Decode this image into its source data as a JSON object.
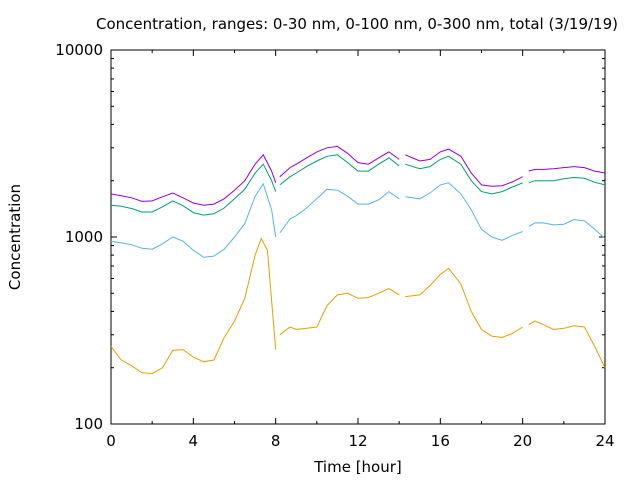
{
  "chart_data": {
    "type": "line",
    "title": "Concentration, ranges: 0-30 nm, 0-100 nm, 0-300 nm, total (3/19/19)",
    "xlabel": "Time [hour]",
    "ylabel": "Concentration",
    "xlim": [
      0,
      24
    ],
    "ylim": [
      100,
      10000
    ],
    "yscale": "log",
    "xticks": [
      0,
      4,
      8,
      12,
      16,
      20,
      24
    ],
    "yticks": [
      100,
      1000,
      10000
    ],
    "xtick_labels": [
      "0",
      "4",
      "8",
      "12",
      "16",
      "20",
      "24"
    ],
    "ytick_labels": [
      "100",
      "1000",
      "10000"
    ],
    "grid": false,
    "legend": "none",
    "series": [
      {
        "color": "#e69f00",
        "points": [
          [
            0,
            260
          ],
          [
            0.5,
            220
          ],
          [
            1,
            205
          ],
          [
            1.5,
            188
          ],
          [
            2,
            186
          ],
          [
            2.5,
            200
          ],
          [
            3,
            248
          ],
          [
            3.5,
            250
          ],
          [
            4,
            228
          ],
          [
            4.5,
            215
          ],
          [
            5,
            220
          ],
          [
            5.5,
            290
          ],
          [
            6,
            355
          ],
          [
            6.5,
            470
          ],
          [
            7,
            800
          ],
          [
            7.3,
            980
          ],
          [
            7.6,
            850
          ],
          [
            8,
            250
          ],
          [
            8.2,
            300
          ],
          [
            8.7,
            330
          ],
          [
            9,
            320
          ],
          [
            9.5,
            325
          ],
          [
            10,
            330
          ],
          [
            10.5,
            430
          ],
          [
            11,
            490
          ],
          [
            11.5,
            500
          ],
          [
            12,
            470
          ],
          [
            12.5,
            475
          ],
          [
            13,
            500
          ],
          [
            13.5,
            530
          ],
          [
            14,
            490
          ],
          [
            14.3,
            480
          ],
          [
            15,
            490
          ],
          [
            15.5,
            550
          ],
          [
            16,
            630
          ],
          [
            16.4,
            680
          ],
          [
            17,
            560
          ],
          [
            17.5,
            400
          ],
          [
            18,
            320
          ],
          [
            18.5,
            295
          ],
          [
            19,
            290
          ],
          [
            19.5,
            305
          ],
          [
            20,
            330
          ],
          [
            20.3,
            340
          ],
          [
            20.6,
            355
          ],
          [
            21,
            340
          ],
          [
            21.5,
            320
          ],
          [
            22,
            325
          ],
          [
            22.5,
            335
          ],
          [
            23,
            330
          ],
          [
            23.5,
            260
          ],
          [
            24,
            200
          ]
        ]
      },
      {
        "color": "#56b4e9",
        "points": [
          [
            0,
            950
          ],
          [
            0.5,
            930
          ],
          [
            1,
            910
          ],
          [
            1.5,
            870
          ],
          [
            2,
            860
          ],
          [
            2.5,
            920
          ],
          [
            3,
            1000
          ],
          [
            3.5,
            950
          ],
          [
            4,
            850
          ],
          [
            4.5,
            780
          ],
          [
            5,
            790
          ],
          [
            5.5,
            860
          ],
          [
            6,
            1000
          ],
          [
            6.5,
            1180
          ],
          [
            7,
            1650
          ],
          [
            7.4,
            1920
          ],
          [
            7.8,
            1400
          ],
          [
            8,
            1000
          ],
          [
            8.2,
            1050
          ],
          [
            8.7,
            1250
          ],
          [
            9,
            1300
          ],
          [
            9.5,
            1430
          ],
          [
            10,
            1600
          ],
          [
            10.5,
            1800
          ],
          [
            11,
            1780
          ],
          [
            11.5,
            1650
          ],
          [
            12,
            1500
          ],
          [
            12.5,
            1500
          ],
          [
            13,
            1580
          ],
          [
            13.5,
            1750
          ],
          [
            14,
            1600
          ],
          [
            14.3,
            1640
          ],
          [
            15,
            1600
          ],
          [
            15.5,
            1720
          ],
          [
            16,
            1900
          ],
          [
            16.4,
            1950
          ],
          [
            17,
            1700
          ],
          [
            17.5,
            1400
          ],
          [
            18,
            1100
          ],
          [
            18.5,
            1000
          ],
          [
            19,
            960
          ],
          [
            19.5,
            1020
          ],
          [
            20,
            1070
          ],
          [
            20.3,
            1140
          ],
          [
            20.6,
            1190
          ],
          [
            21,
            1190
          ],
          [
            21.5,
            1160
          ],
          [
            22,
            1170
          ],
          [
            22.5,
            1240
          ],
          [
            23,
            1220
          ],
          [
            23.5,
            1100
          ],
          [
            24,
            980
          ]
        ]
      },
      {
        "color": "#009e73",
        "points": [
          [
            0,
            1480
          ],
          [
            0.5,
            1460
          ],
          [
            1,
            1420
          ],
          [
            1.5,
            1360
          ],
          [
            2,
            1360
          ],
          [
            2.5,
            1450
          ],
          [
            3,
            1560
          ],
          [
            3.5,
            1470
          ],
          [
            4,
            1350
          ],
          [
            4.5,
            1310
          ],
          [
            5,
            1330
          ],
          [
            5.5,
            1430
          ],
          [
            6,
            1600
          ],
          [
            6.5,
            1800
          ],
          [
            7,
            2200
          ],
          [
            7.4,
            2450
          ],
          [
            7.8,
            2000
          ],
          [
            8,
            1750
          ],
          [
            8.2,
            1900
          ],
          [
            8.7,
            2100
          ],
          [
            9,
            2200
          ],
          [
            9.5,
            2380
          ],
          [
            10,
            2550
          ],
          [
            10.5,
            2700
          ],
          [
            11,
            2750
          ],
          [
            11.5,
            2500
          ],
          [
            12,
            2250
          ],
          [
            12.5,
            2250
          ],
          [
            13,
            2450
          ],
          [
            13.5,
            2650
          ],
          [
            14,
            2400
          ],
          [
            14.3,
            2450
          ],
          [
            15,
            2320
          ],
          [
            15.5,
            2380
          ],
          [
            16,
            2600
          ],
          [
            16.4,
            2700
          ],
          [
            17,
            2450
          ],
          [
            17.5,
            2000
          ],
          [
            18,
            1750
          ],
          [
            18.5,
            1700
          ],
          [
            19,
            1750
          ],
          [
            19.5,
            1850
          ],
          [
            20,
            1950
          ],
          [
            20.3,
            1950
          ],
          [
            20.6,
            2000
          ],
          [
            21,
            2000
          ],
          [
            21.5,
            2000
          ],
          [
            22,
            2050
          ],
          [
            22.5,
            2080
          ],
          [
            23,
            2060
          ],
          [
            23.5,
            1960
          ],
          [
            24,
            1900
          ]
        ]
      },
      {
        "color": "#9400d3",
        "points": [
          [
            0,
            1700
          ],
          [
            0.5,
            1660
          ],
          [
            1,
            1620
          ],
          [
            1.5,
            1550
          ],
          [
            2,
            1560
          ],
          [
            2.5,
            1640
          ],
          [
            3,
            1720
          ],
          [
            3.5,
            1620
          ],
          [
            4,
            1520
          ],
          [
            4.5,
            1480
          ],
          [
            5,
            1500
          ],
          [
            5.5,
            1600
          ],
          [
            6,
            1780
          ],
          [
            6.5,
            2000
          ],
          [
            7,
            2450
          ],
          [
            7.4,
            2750
          ],
          [
            7.8,
            2250
          ],
          [
            8,
            1950
          ],
          [
            8.2,
            2100
          ],
          [
            8.7,
            2350
          ],
          [
            9,
            2450
          ],
          [
            9.5,
            2650
          ],
          [
            10,
            2850
          ],
          [
            10.5,
            3000
          ],
          [
            11,
            3050
          ],
          [
            11.5,
            2800
          ],
          [
            12,
            2500
          ],
          [
            12.5,
            2450
          ],
          [
            13,
            2650
          ],
          [
            13.5,
            2850
          ],
          [
            14,
            2600
          ],
          [
            14.3,
            2750
          ],
          [
            15,
            2550
          ],
          [
            15.5,
            2600
          ],
          [
            16,
            2850
          ],
          [
            16.4,
            2950
          ],
          [
            17,
            2700
          ],
          [
            17.5,
            2200
          ],
          [
            18,
            1900
          ],
          [
            18.5,
            1870
          ],
          [
            19,
            1880
          ],
          [
            19.5,
            1970
          ],
          [
            20,
            2100
          ],
          [
            20.3,
            2250
          ],
          [
            20.6,
            2300
          ],
          [
            21,
            2300
          ],
          [
            21.5,
            2320
          ],
          [
            22,
            2350
          ],
          [
            22.5,
            2380
          ],
          [
            23,
            2350
          ],
          [
            23.5,
            2250
          ],
          [
            24,
            2200
          ]
        ]
      }
    ]
  }
}
